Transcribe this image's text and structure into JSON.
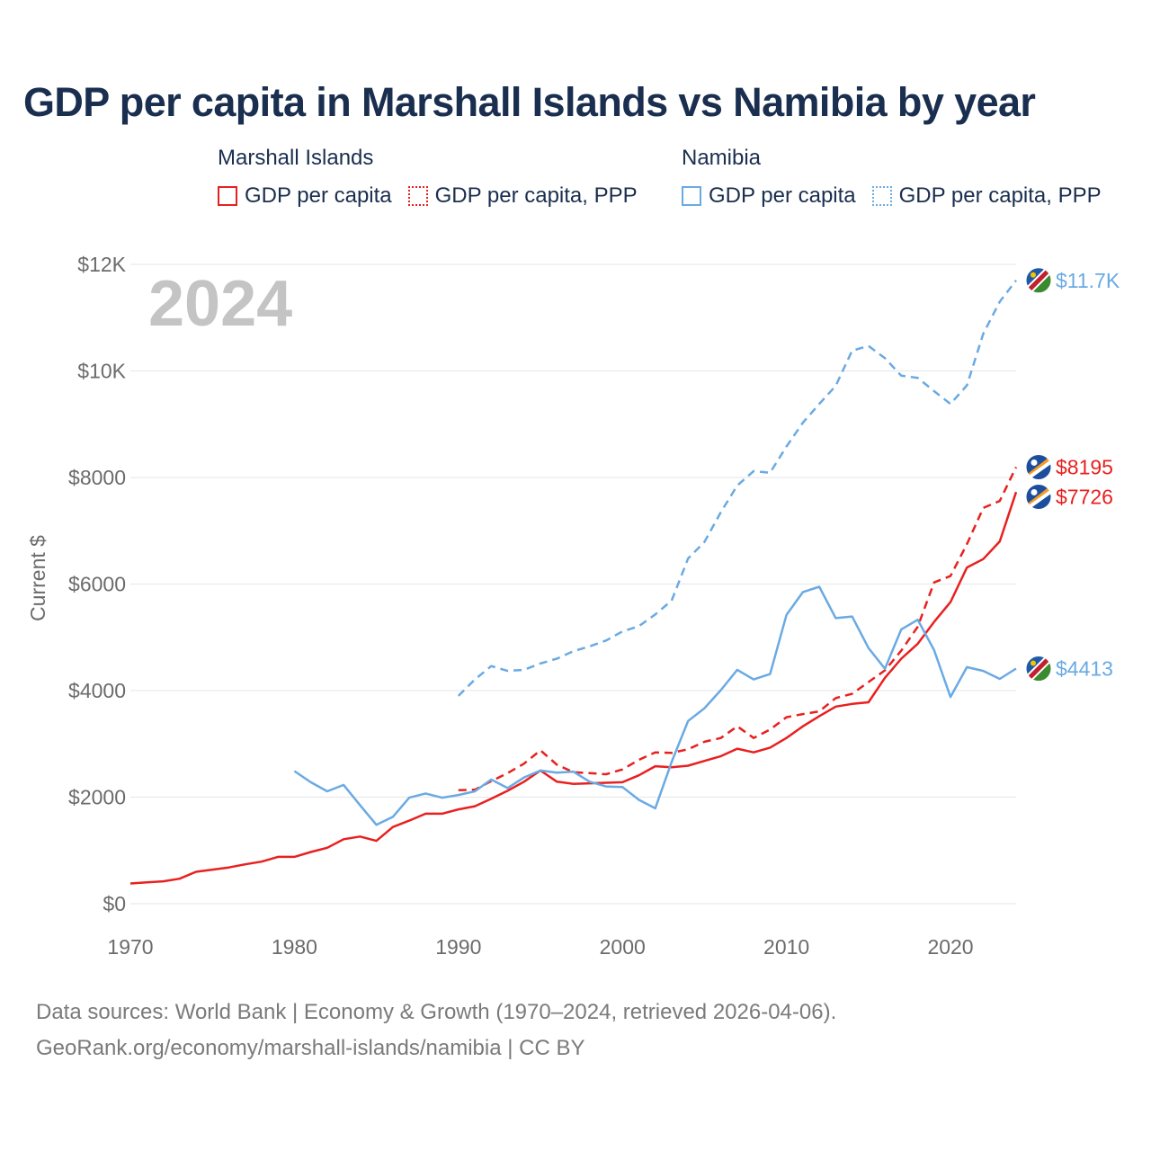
{
  "title": "GDP per capita in Marshall Islands vs Namibia by year",
  "legend": [
    {
      "group": "Marshall Islands",
      "items": [
        "GDP per capita",
        "GDP per capita, PPP"
      ]
    },
    {
      "group": "Namibia",
      "items": [
        "GDP per capita",
        "GDP per capita, PPP"
      ]
    }
  ],
  "colors": {
    "marshall": "#e8201f",
    "namibia": "#6aaae3",
    "axis_text": "#6b6b6b",
    "grid": "#e6e6e6",
    "year": "#c4c4c4"
  },
  "chart_data": {
    "type": "line",
    "title": "GDP per capita in Marshall Islands vs Namibia by year",
    "ylabel": "Current $",
    "xlabel": "",
    "xlim": [
      1970,
      2024
    ],
    "ylim": [
      0,
      12000
    ],
    "x_ticks": [
      "1970",
      "1980",
      "1990",
      "2000",
      "2010",
      "2020"
    ],
    "x_tick_values": [
      1970,
      1980,
      1990,
      2000,
      2010,
      2020
    ],
    "y_ticks": [
      "$0",
      "$2000",
      "$4000",
      "$6000",
      "$8000",
      "$10K",
      "$12K"
    ],
    "y_tick_values": [
      0,
      2000,
      4000,
      6000,
      8000,
      10000,
      12000
    ],
    "year_label": "2024",
    "series": [
      {
        "name": "Marshall Islands GDP per capita",
        "country": "Marshall Islands",
        "style": "solid",
        "color": "#e8201f",
        "end_label": "$7726",
        "start_year": 1970,
        "values": [
          380,
          400,
          420,
          470,
          600,
          640,
          680,
          740,
          790,
          880,
          880,
          970,
          1050,
          1210,
          1260,
          1180,
          1440,
          1560,
          1690,
          1690,
          1770,
          1830,
          1970,
          2120,
          2290,
          2500,
          2290,
          2250,
          2260,
          2270,
          2280,
          2410,
          2580,
          2560,
          2590,
          2680,
          2770,
          2910,
          2840,
          2930,
          3110,
          3330,
          3520,
          3700,
          3750,
          3780,
          4240,
          4600,
          4880,
          5290,
          5660,
          6310,
          6470,
          6800,
          7726
        ]
      },
      {
        "name": "Marshall Islands GDP per capita, PPP",
        "country": "Marshall Islands",
        "style": "dashed",
        "color": "#e8201f",
        "end_label": "$8195",
        "start_year": 1990,
        "values": [
          2130,
          2140,
          2300,
          2450,
          2630,
          2880,
          2610,
          2470,
          2450,
          2430,
          2520,
          2700,
          2840,
          2830,
          2900,
          3040,
          3110,
          3330,
          3110,
          3270,
          3500,
          3560,
          3610,
          3860,
          3940,
          4160,
          4380,
          4750,
          5200,
          6030,
          6150,
          6750,
          7430,
          7560,
          8195
        ]
      },
      {
        "name": "Namibia GDP per capita",
        "country": "Namibia",
        "style": "solid",
        "color": "#6aaae3",
        "end_label": "$4413",
        "start_year": 1980,
        "values": [
          2490,
          2280,
          2110,
          2230,
          1850,
          1480,
          1630,
          1990,
          2070,
          1990,
          2040,
          2110,
          2330,
          2170,
          2370,
          2500,
          2460,
          2480,
          2290,
          2200,
          2190,
          1950,
          1790,
          2660,
          3430,
          3670,
          4010,
          4390,
          4210,
          4310,
          5420,
          5850,
          5950,
          5360,
          5390,
          4800,
          4410,
          5150,
          5330,
          4760,
          3880,
          4440,
          4370,
          4220,
          4413
        ]
      },
      {
        "name": "Namibia GDP per capita, PPP",
        "country": "Namibia",
        "style": "dashed",
        "color": "#6aaae3",
        "end_label": "$11.7K",
        "start_year": 1990,
        "values": [
          3900,
          4210,
          4460,
          4370,
          4390,
          4510,
          4600,
          4740,
          4830,
          4940,
          5110,
          5210,
          5430,
          5690,
          6480,
          6790,
          7350,
          7850,
          8120,
          8090,
          8580,
          9030,
          9380,
          9720,
          10380,
          10470,
          10240,
          9910,
          9870,
          9620,
          9380,
          9730,
          10700,
          11300,
          11700
        ]
      }
    ]
  },
  "source": {
    "line1": "Data sources: World Bank | Economy & Growth (1970–2024, retrieved 2026-04-06).",
    "line2": "GeoRank.org/economy/marshall-islands/namibia | CC BY"
  }
}
